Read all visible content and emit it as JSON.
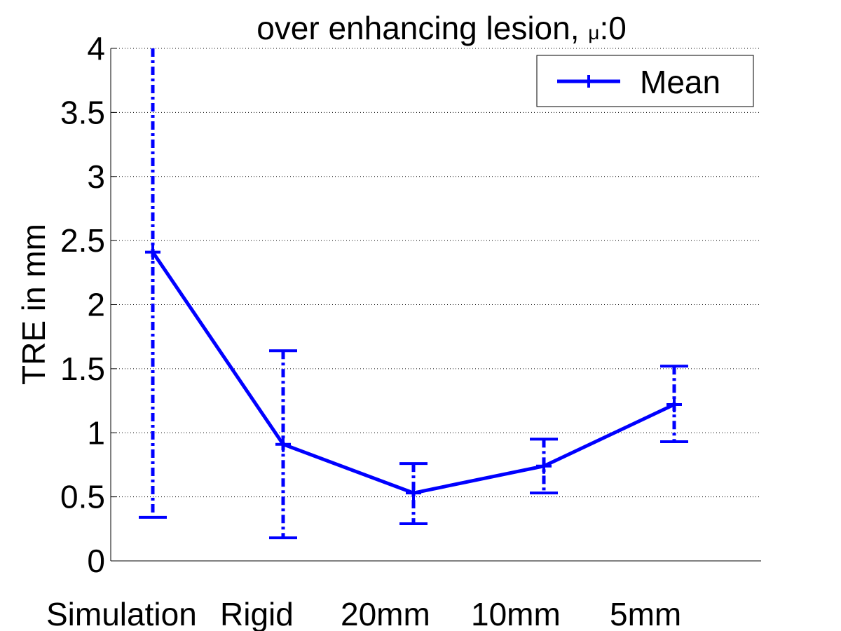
{
  "chart_data": {
    "type": "line",
    "title": "over enhancing lesion, ",
    "title_mu": "μ",
    "title_suffix": ":0",
    "ylabel": "TRE in mm",
    "xlabel": "",
    "categories": [
      "Simulation",
      "Rigid",
      "20mm",
      "10mm",
      "5mm"
    ],
    "ylim": [
      0,
      4
    ],
    "yticks": [
      0,
      0.5,
      1,
      1.5,
      2,
      2.5,
      3,
      3.5,
      4
    ],
    "ytick_labels": [
      "0",
      "0.5",
      "1",
      "1.5",
      "2",
      "2.5",
      "3",
      "3.5",
      "4"
    ],
    "grid": true,
    "legend_position": "top-right",
    "series": [
      {
        "name": "Mean",
        "color": "#0000ff",
        "values": [
          2.41,
          0.91,
          0.53,
          0.74,
          1.22
        ],
        "error_low": [
          0.34,
          0.18,
          0.29,
          0.53,
          0.93
        ],
        "error_high": [
          4.0,
          1.64,
          0.76,
          0.95,
          1.52
        ]
      }
    ]
  }
}
